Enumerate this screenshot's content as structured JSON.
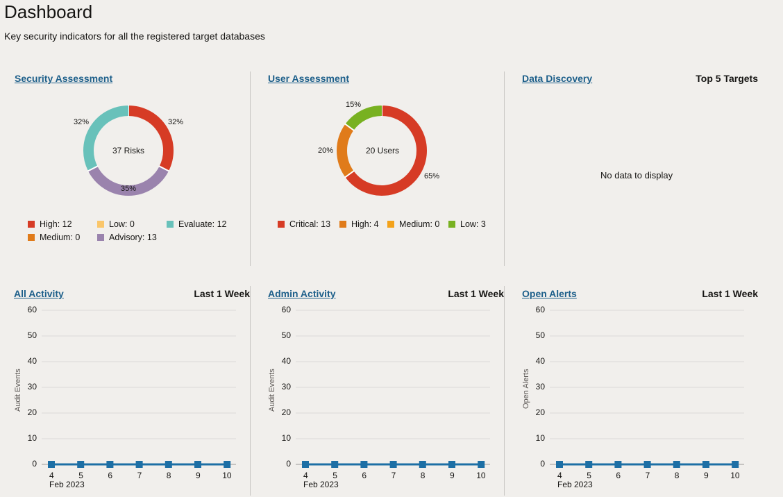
{
  "page": {
    "title": "Dashboard",
    "subtitle": "Key security indicators for all the registered target databases"
  },
  "security_assessment": {
    "title": "Security Assessment",
    "center_label": "37 Risks",
    "slice_labels": [
      "32%",
      "35%",
      "32%"
    ],
    "legend": [
      {
        "label": "High: 12",
        "color": "#d63b25"
      },
      {
        "label": "Low: 0",
        "color": "#fac66a"
      },
      {
        "label": "Evaluate: 12",
        "color": "#68c1ba"
      },
      {
        "label": "Medium: 0",
        "color": "#e07b1a"
      },
      {
        "label": "Advisory: 13",
        "color": "#9a83ad"
      }
    ]
  },
  "user_assessment": {
    "title": "User Assessment",
    "center_label": "20 Users",
    "slice_labels": [
      "65%",
      "20%",
      "15%"
    ],
    "legend": [
      {
        "label": "Critical: 13",
        "color": "#d63b25"
      },
      {
        "label": "High: 4",
        "color": "#e07b1a"
      },
      {
        "label": "Medium: 0",
        "color": "#f3a21a"
      },
      {
        "label": "Low: 3",
        "color": "#78b121"
      }
    ]
  },
  "data_discovery": {
    "title": "Data Discovery",
    "right_label": "Top 5 Targets",
    "empty_text": "No data to display"
  },
  "all_activity": {
    "title": "All Activity",
    "period": "Last 1 Week",
    "y_title": "Audit Events",
    "x_sub": "Feb 2023"
  },
  "admin_activity": {
    "title": "Admin Activity",
    "period": "Last 1 Week",
    "y_title": "Audit Events",
    "x_sub": "Feb 2023"
  },
  "open_alerts": {
    "title": "Open Alerts",
    "period": "Last 1 Week",
    "y_title": "Open Alerts",
    "x_sub": "Feb 2023"
  },
  "chart_data": [
    {
      "type": "pie",
      "categories": [
        "High",
        "Advisory",
        "Evaluate",
        "Low",
        "Medium"
      ],
      "values": [
        12,
        13,
        12,
        0,
        0
      ],
      "colors": [
        "#d63b25",
        "#9a83ad",
        "#68c1ba",
        "#fac66a",
        "#e07b1a"
      ],
      "title": "Security Assessment"
    },
    {
      "type": "pie",
      "categories": [
        "Critical",
        "High",
        "Low",
        "Medium"
      ],
      "values": [
        13,
        4,
        3,
        0
      ],
      "colors": [
        "#d63b25",
        "#e07b1a",
        "#78b121",
        "#f3a21a"
      ],
      "title": "User Assessment"
    },
    {
      "type": "line",
      "title": "All Activity",
      "x": [
        "4",
        "5",
        "6",
        "7",
        "8",
        "9",
        "10"
      ],
      "series": [
        {
          "values": [
            0,
            0,
            0,
            0,
            0,
            0,
            0
          ]
        }
      ],
      "ylabel": "Audit Events",
      "xlabel": "Feb 2023",
      "yticks": [
        0,
        10,
        20,
        30,
        40,
        50,
        60
      ],
      "ylim": [
        0,
        60
      ],
      "color": "#1d6fa5"
    },
    {
      "type": "line",
      "title": "Admin Activity",
      "x": [
        "4",
        "5",
        "6",
        "7",
        "8",
        "9",
        "10"
      ],
      "series": [
        {
          "values": [
            0,
            0,
            0,
            0,
            0,
            0,
            0
          ]
        }
      ],
      "ylabel": "Audit Events",
      "xlabel": "Feb 2023",
      "yticks": [
        0,
        10,
        20,
        30,
        40,
        50,
        60
      ],
      "ylim": [
        0,
        60
      ],
      "color": "#1d6fa5"
    },
    {
      "type": "line",
      "title": "Open Alerts",
      "x": [
        "4",
        "5",
        "6",
        "7",
        "8",
        "9",
        "10"
      ],
      "series": [
        {
          "values": [
            0,
            0,
            0,
            0,
            0,
            0,
            0
          ]
        }
      ],
      "ylabel": "Open Alerts",
      "xlabel": "Feb 2023",
      "yticks": [
        0,
        10,
        20,
        30,
        40,
        50,
        60
      ],
      "ylim": [
        0,
        60
      ],
      "color": "#1d6fa5"
    }
  ]
}
